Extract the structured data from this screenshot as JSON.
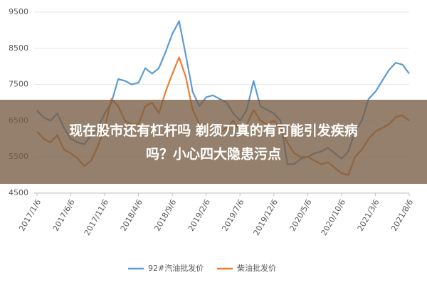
{
  "chart_data": {
    "type": "line",
    "categories": [
      "2017/1/6",
      null,
      null,
      null,
      null,
      "2017/6/6",
      null,
      null,
      null,
      null,
      "2017/11/6",
      null,
      null,
      null,
      null,
      "2018/4/6",
      null,
      null,
      null,
      null,
      "2018/9/6",
      null,
      null,
      null,
      null,
      "2019/2/6",
      null,
      null,
      null,
      null,
      "2019/7/6",
      null,
      null,
      null,
      null,
      "2019/12/6",
      null,
      null,
      null,
      null,
      "2020/5/6",
      null,
      null,
      null,
      null,
      "2020/10/6",
      null,
      null,
      null,
      null,
      "2021/3/6",
      null,
      null,
      null,
      null,
      "2021/8/6"
    ],
    "series": [
      {
        "name": "92#汽油批发价",
        "color": "#5b9bd5",
        "values": [
          6780,
          6590,
          6500,
          6700,
          6300,
          6000,
          5900,
          5850,
          6100,
          6300,
          6700,
          7000,
          7650,
          7600,
          7500,
          7550,
          7950,
          7800,
          7950,
          8400,
          8900,
          9250,
          8300,
          7300,
          6900,
          7150,
          7200,
          7100,
          7000,
          6700,
          6500,
          6800,
          7600,
          6900,
          6800,
          6700,
          6500,
          5300,
          5300,
          5450,
          5500,
          5600,
          5650,
          5750,
          5600,
          5450,
          5650,
          6200,
          6500,
          7100,
          7300,
          7600,
          7900,
          8100,
          8050,
          7800
        ]
      },
      {
        "name": "柴油批发价",
        "color": "#ed7d31",
        "values": [
          6200,
          6000,
          5900,
          6100,
          5700,
          5600,
          5450,
          5250,
          5400,
          5800,
          6300,
          7100,
          6900,
          6500,
          6400,
          6400,
          6900,
          7000,
          6700,
          7300,
          7800,
          8250,
          7700,
          6800,
          6400,
          6400,
          6300,
          6200,
          6300,
          6500,
          6200,
          6400,
          6800,
          6500,
          6400,
          6500,
          6300,
          5900,
          5600,
          5500,
          5500,
          5400,
          5300,
          5350,
          5200,
          5050,
          5000,
          5500,
          5700,
          6000,
          6200,
          6300,
          6400,
          6600,
          6650,
          6500
        ]
      }
    ],
    "ylim": [
      4500,
      9500
    ],
    "yticks": [
      4500,
      5500,
      6500,
      7500,
      8500,
      9500
    ],
    "grid": true,
    "legend": "bottom",
    "overlay_title": [
      "现在股市还有杠杆吗 剃须刀真的有可能引发疾病",
      "吗？小心四大隐患污点"
    ]
  }
}
